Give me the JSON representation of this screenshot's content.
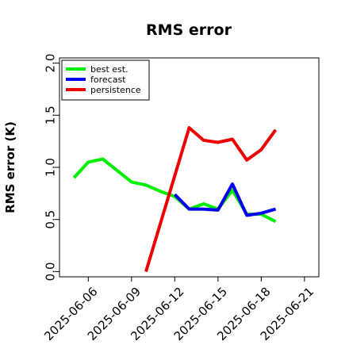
{
  "chart_data": {
    "type": "line",
    "title": "RMS error",
    "xlabel": "",
    "ylabel": "RMS error (K)",
    "xlim": [
      "2025-06-04",
      "2025-06-22"
    ],
    "ylim": [
      -0.05,
      2.05
    ],
    "yticks": [
      "0.0",
      "0.5",
      "1.0",
      "1.5",
      "2.0"
    ],
    "xticks": [
      "2025-06-06",
      "2025-06-09",
      "2025-06-12",
      "2025-06-15",
      "2025-06-18",
      "2025-06-21"
    ],
    "highlight_tick": "2025-06-12",
    "highlight_color": "#228b22",
    "grid": false,
    "legend_position": "top-left",
    "x": [
      "2025-06-05",
      "2025-06-06",
      "2025-06-07",
      "2025-06-08",
      "2025-06-09",
      "2025-06-10",
      "2025-06-11",
      "2025-06-12",
      "2025-06-13",
      "2025-06-14",
      "2025-06-15",
      "2025-06-16",
      "2025-06-17",
      "2025-06-18",
      "2025-06-19"
    ],
    "series": [
      {
        "name": "best est.",
        "color": "#00ee00",
        "values": [
          0.9,
          1.05,
          1.08,
          0.97,
          0.86,
          0.83,
          0.77,
          0.72,
          0.6,
          0.65,
          0.6,
          0.78,
          0.55,
          0.55,
          0.48
        ]
      },
      {
        "name": "forecast",
        "color": "#0000ee",
        "values": [
          null,
          null,
          null,
          null,
          null,
          null,
          null,
          0.74,
          0.6,
          0.6,
          0.59,
          0.84,
          0.54,
          0.56,
          0.6
        ]
      },
      {
        "name": "persistence",
        "color": "#ee0000",
        "values": [
          null,
          null,
          null,
          null,
          null,
          0.0,
          null,
          null,
          1.38,
          1.26,
          1.24,
          1.27,
          1.07,
          1.17,
          1.36
        ]
      }
    ]
  }
}
